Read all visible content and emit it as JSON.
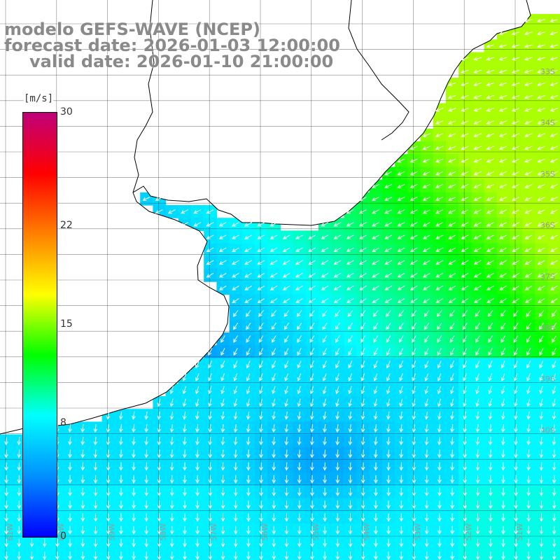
{
  "title": {
    "line1": "modelo GEFS-WAVE (NCEP)",
    "line2": "forecast date: 2026-01-03 12:00:00",
    "line3": "valid date: 2026-01-10 21:00:00"
  },
  "legend": {
    "unit": "[m/s]",
    "ticks": [
      "30",
      "22",
      "15",
      "8",
      "0"
    ],
    "tick_values": [
      30,
      22,
      15,
      8,
      0
    ],
    "range": [
      0,
      30
    ],
    "colors": [
      "#0000ff",
      "#0090ff",
      "#00ffff",
      "#00ff00",
      "#ffff00",
      "#ff8000",
      "#ff0000",
      "#c0007a"
    ]
  },
  "map": {
    "variable": "wind speed and direction",
    "lat_labels": [
      "33S",
      "34S",
      "35S",
      "36S",
      "37S",
      "38S",
      "39S",
      "40S"
    ],
    "lon_labels": [
      "61W",
      "60W",
      "59W",
      "58W",
      "57W",
      "56W",
      "55W",
      "54W",
      "53W",
      "52W",
      "51W"
    ],
    "land_color": "#ffffff",
    "coast_color": "#000000",
    "arrow_color": "#ffffff",
    "grid_color": "#333333"
  }
}
